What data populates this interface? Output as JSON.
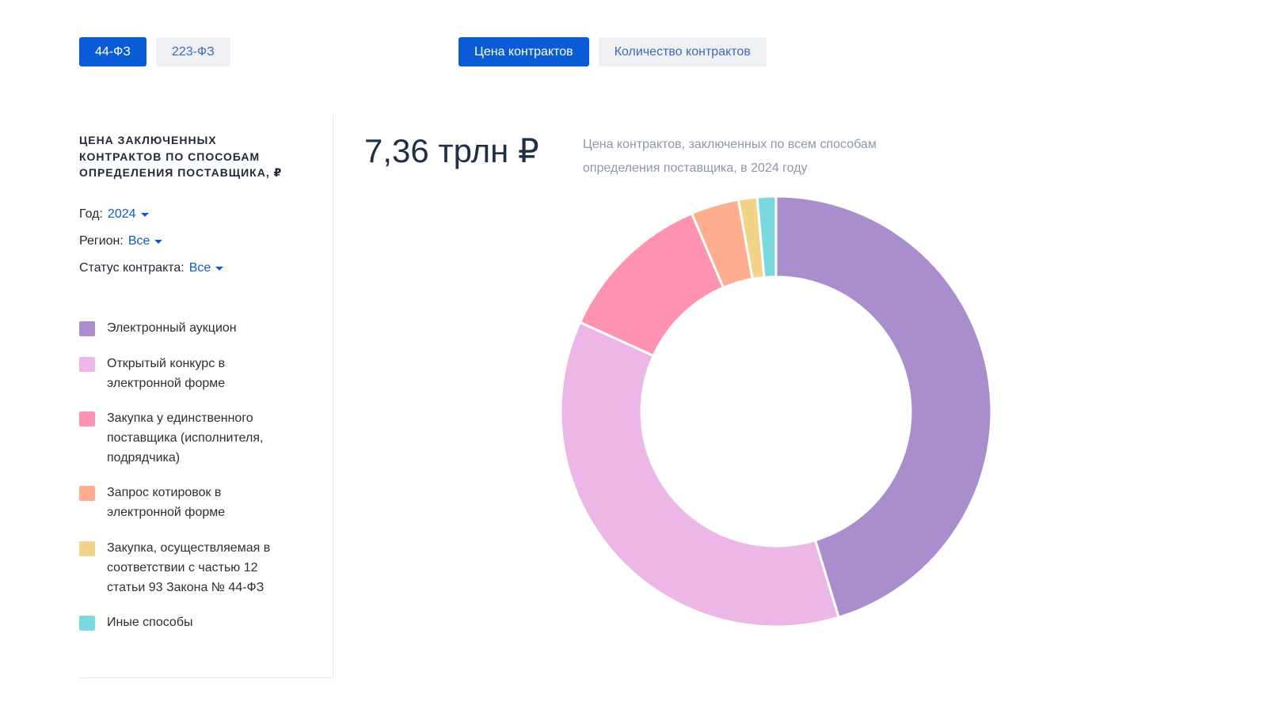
{
  "law_toggle": [
    {
      "label": "44-ФЗ",
      "active": true
    },
    {
      "label": "223-ФЗ",
      "active": false
    }
  ],
  "metric_toggle": [
    {
      "label": "Цена контрактов",
      "active": true
    },
    {
      "label": "Количество контрактов",
      "active": false
    }
  ],
  "sidebar": {
    "title": "ЦЕНА ЗАКЛЮЧЕННЫХ КОНТРАКТОВ ПО СПОСОБАМ ОПРЕДЕЛЕНИЯ ПОСТАВЩИКА, ₽",
    "filters": {
      "year": {
        "label": "Год:",
        "value": "2024"
      },
      "region": {
        "label": "Регион:",
        "value": "Все"
      },
      "status": {
        "label": "Статус контракта:",
        "value": "Все"
      }
    }
  },
  "summary": {
    "total": "7,36 трлн ₽",
    "caption": "Цена контрактов, заключенных по всем способам определения поставщика, в 2024 году"
  },
  "chart_data": {
    "type": "pie",
    "donut": true,
    "legend_position": "left",
    "categories": [
      "Электронный аукцион",
      "Открытый конкурс в электронной форме",
      "Закупка у единственного поставщика (исполнителя, подрядчика)",
      "Запрос котировок в электронной форме",
      "Закупка, осуществляемая в соответствии с частью 12 статьи 93 Закона № 44-ФЗ",
      "Иные способы"
    ],
    "values": [
      45.3,
      36.5,
      11.8,
      3.6,
      1.4,
      1.4
    ],
    "colors": [
      "#a98dcc",
      "#ecb6e6",
      "#fe92b1",
      "#feae8f",
      "#f1d389",
      "#7ad9de"
    ]
  }
}
